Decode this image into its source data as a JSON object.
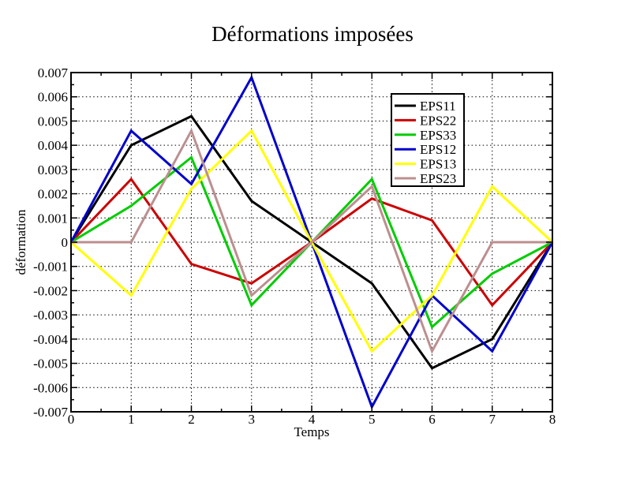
{
  "title": "Déformations imposées",
  "chart_data": {
    "type": "line",
    "title": "Déformations imposées",
    "xlabel": "Temps",
    "ylabel": "déformation",
    "x": [
      0,
      1,
      2,
      3,
      4,
      5,
      6,
      7,
      8
    ],
    "xlim": [
      0,
      8
    ],
    "ylim": [
      -0.007,
      0.007
    ],
    "x_major_step": 1,
    "x_minor_step": 0.5,
    "y_major_step": 0.001,
    "y_minor_step": 0.0005,
    "grid": "dotted",
    "legend_position": "top-right",
    "x_tick_labels": [
      "0",
      "1",
      "2",
      "3",
      "4",
      "5",
      "6",
      "7",
      "8"
    ],
    "y_tick_labels": [
      "0.007",
      "0.006",
      "0.005",
      "0.004",
      "0.003",
      "0.002",
      "0.001",
      "0",
      "-0.001",
      "-0.002",
      "-0.003",
      "-0.004",
      "-0.005",
      "-0.006",
      "-0.007"
    ],
    "series": [
      {
        "name": "EPS11",
        "color": "#000000",
        "values": [
          0,
          0.004,
          0.0052,
          0.0017,
          0,
          -0.0017,
          -0.0052,
          -0.004,
          0
        ]
      },
      {
        "name": "EPS22",
        "color": "#cc0000",
        "values": [
          0,
          0.0026,
          -0.0009,
          -0.0017,
          0,
          0.0018,
          0.0009,
          -0.0026,
          0
        ]
      },
      {
        "name": "EPS33",
        "color": "#00cc00",
        "values": [
          0,
          0.0015,
          0.0035,
          -0.0026,
          0,
          0.0026,
          -0.0035,
          -0.0013,
          0
        ]
      },
      {
        "name": "EPS12",
        "color": "#0000cc",
        "values": [
          0,
          0.0046,
          0.0024,
          0.0068,
          0,
          -0.0068,
          -0.0022,
          -0.0045,
          0
        ]
      },
      {
        "name": "EPS13",
        "color": "#ffff00",
        "values": [
          0,
          -0.0022,
          0.0022,
          0.0046,
          0,
          -0.0045,
          -0.0022,
          0.0023,
          0
        ]
      },
      {
        "name": "EPS23",
        "color": "#bc8f8f",
        "values": [
          0,
          0,
          0.0046,
          -0.0022,
          0,
          0.0023,
          -0.0045,
          0,
          0
        ]
      }
    ]
  }
}
